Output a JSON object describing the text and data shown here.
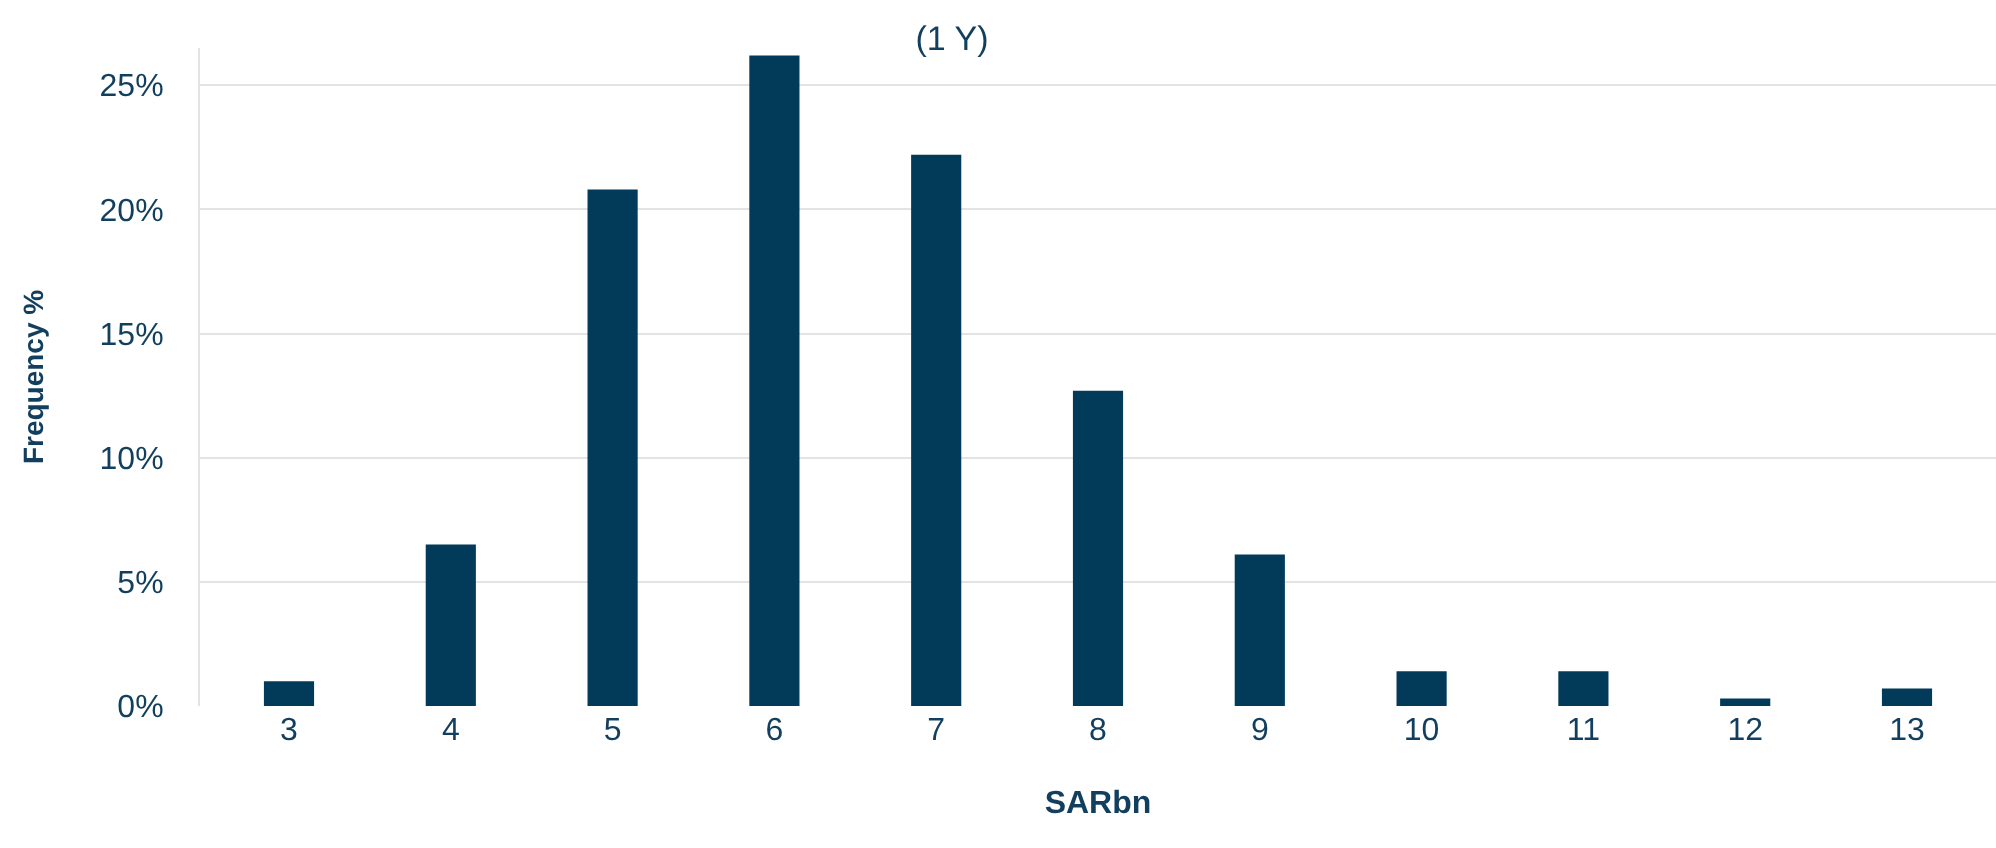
{
  "chart_data": {
    "type": "bar",
    "title": "(1 Y)",
    "xlabel": "SARbn",
    "ylabel": "Frequency %",
    "categories": [
      "3",
      "4",
      "5",
      "6",
      "7",
      "8",
      "9",
      "10",
      "11",
      "12",
      "13"
    ],
    "values": [
      1.0,
      6.5,
      20.8,
      26.2,
      22.2,
      12.7,
      6.1,
      1.4,
      1.4,
      0.3,
      0.7
    ],
    "color": "#023a5a",
    "ylim": [
      0,
      26.5
    ],
    "yticks": [
      {
        "value": 0,
        "label": "0%"
      },
      {
        "value": 5,
        "label": "5%"
      },
      {
        "value": 10,
        "label": "10%"
      },
      {
        "value": 15,
        "label": "15%"
      },
      {
        "value": 20,
        "label": "20%"
      },
      {
        "value": 25,
        "label": "25%"
      }
    ],
    "grid": "y"
  }
}
